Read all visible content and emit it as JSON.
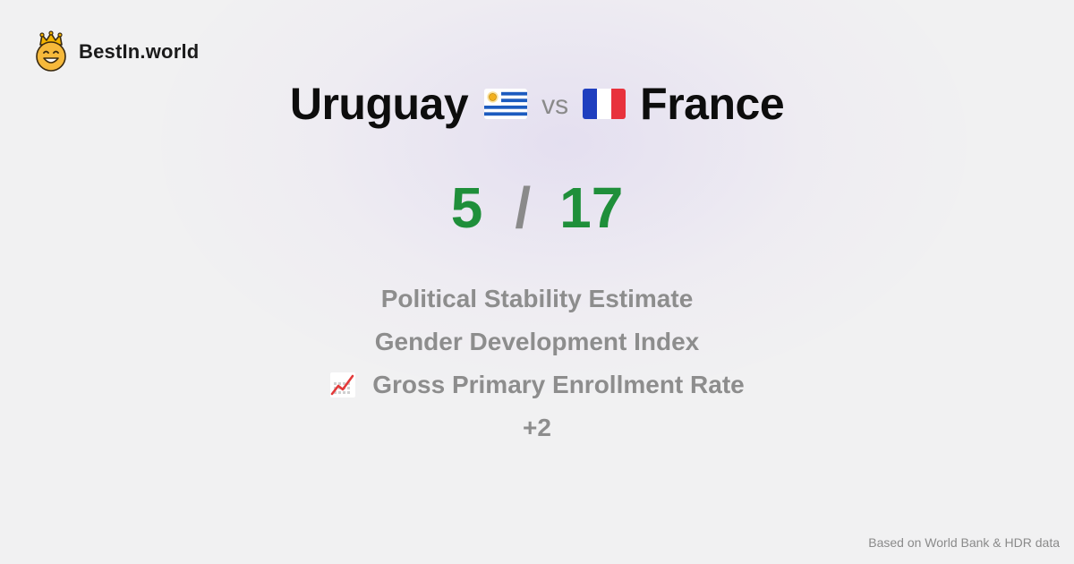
{
  "brand": {
    "name": "BestIn.world",
    "logo_icon": "crown-smiley-icon"
  },
  "comparison": {
    "left_country": "Uruguay",
    "left_flag_icon": "uruguay-flag-icon",
    "vs_label": "vs",
    "right_country": "France",
    "right_flag_icon": "france-flag-icon"
  },
  "score": {
    "left": "5",
    "separator": "/",
    "right": "17",
    "color": "#1f8f3a"
  },
  "metrics": [
    {
      "label": "Political Stability Estimate"
    },
    {
      "label": "Gender Development Index"
    },
    {
      "label": "Gross Primary Enrollment Rate",
      "icon": "chart-increasing-icon"
    },
    {
      "label": "+2"
    }
  ],
  "footer": {
    "source": "Based on World Bank & HDR data"
  },
  "colors": {
    "background": "#f1f1f2",
    "muted_text": "#8d8d8d",
    "score_green": "#1f8f3a"
  }
}
